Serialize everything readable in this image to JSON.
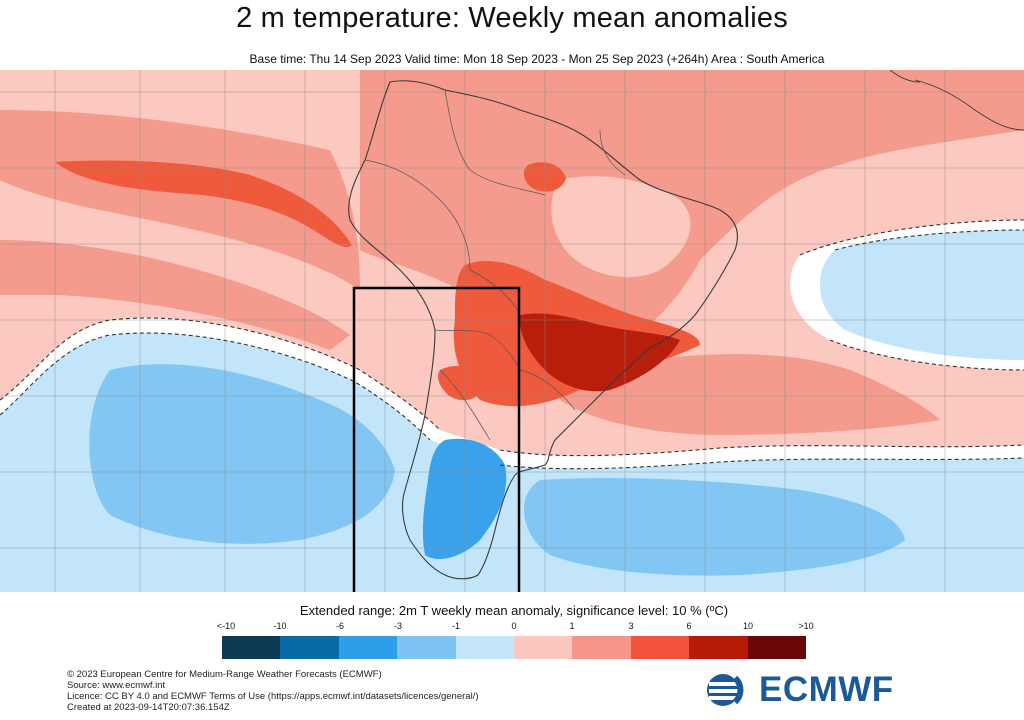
{
  "header": {
    "title": "2 m temperature: Weekly mean anomalies",
    "subtitle": "Base time: Thu 14 Sep 2023 Valid time: Mon 18 Sep 2023 - Mon 25 Sep 2023 (+264h) Area : South America"
  },
  "legend": {
    "title": "Extended range: 2m T weekly mean anomaly, significance level: 10 % (ºC)",
    "tick_labels": [
      "<-10",
      "-10",
      "-6",
      "-3",
      "-1",
      "0",
      "1",
      "3",
      "6",
      "10",
      ">10"
    ],
    "colors": [
      "#0d3b56",
      "#0a6aa6",
      "#2f9ee8",
      "#7fc3f2",
      "#c4e6fa",
      "#fbc8c0",
      "#f6958a",
      "#f2533a",
      "#b41c08",
      "#6a0808"
    ]
  },
  "map": {
    "anomaly_colors": {
      "neg_strong": "#3aa2ea",
      "neg_mid": "#82c7f4",
      "neg_light": "#c3e5f9",
      "neutral": "#ffffff",
      "pos_light": "#fbc9c0",
      "pos_mid": "#f49b8d",
      "pos_strong": "#f05a3c",
      "pos_very_strong": "#b81e0c"
    }
  },
  "footer": {
    "copyright": "© 2023 European Centre for Medium-Range Weather Forecasts (ECMWF)",
    "source": "Source: www.ecmwf.int",
    "licence": "Licence: CC BY 4.0 and ECMWF Terms of Use (https://apps.ecmwf.int/datasets/licences/general/)",
    "created": "Created at 2023-09-14T20:07:36.154Z"
  },
  "logo": {
    "text": "ECMWF",
    "color": "#1b5a96"
  }
}
